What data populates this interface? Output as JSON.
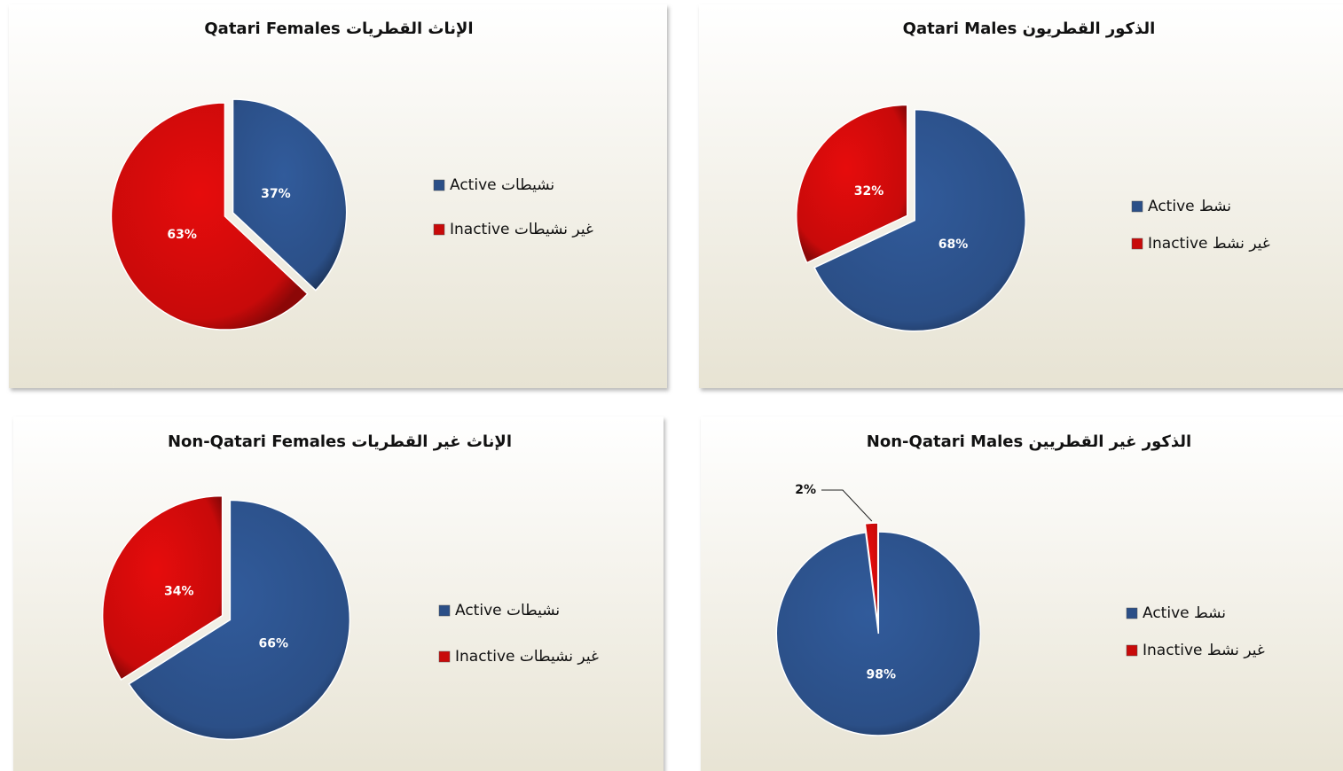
{
  "chart_data": [
    {
      "type": "pie",
      "title": "Qatari Females  الإناث القطريات",
      "categories": [
        "Active نشيطات",
        "Inactive غير نشيطات"
      ],
      "values": [
        37,
        63
      ],
      "value_labels": [
        "37%",
        "63%"
      ],
      "colors": [
        "#2b4f87",
        "#c80a0a"
      ]
    },
    {
      "type": "pie",
      "title": "Qatari Males  الذكور القطريون",
      "categories": [
        "Active نشط",
        "Inactive غير نشط"
      ],
      "values": [
        68,
        32
      ],
      "value_labels": [
        "68%",
        "32%"
      ],
      "colors": [
        "#2b4f87",
        "#c80a0a"
      ]
    },
    {
      "type": "pie",
      "title": "Non-Qatari Females  الإناث غير القطريات",
      "categories": [
        "Active نشيطات",
        "Inactive غير نشيطات"
      ],
      "values": [
        66,
        34
      ],
      "value_labels": [
        "66%",
        "34%"
      ],
      "colors": [
        "#2b4f87",
        "#c80a0a"
      ]
    },
    {
      "type": "pie",
      "title": "Non-Qatari Males  الذكور غير القطريين",
      "categories": [
        "Active نشط",
        "Inactive غير نشط"
      ],
      "values": [
        98,
        2
      ],
      "value_labels": [
        "98%",
        "2%"
      ],
      "colors": [
        "#2b4f87",
        "#c80a0a"
      ]
    }
  ]
}
